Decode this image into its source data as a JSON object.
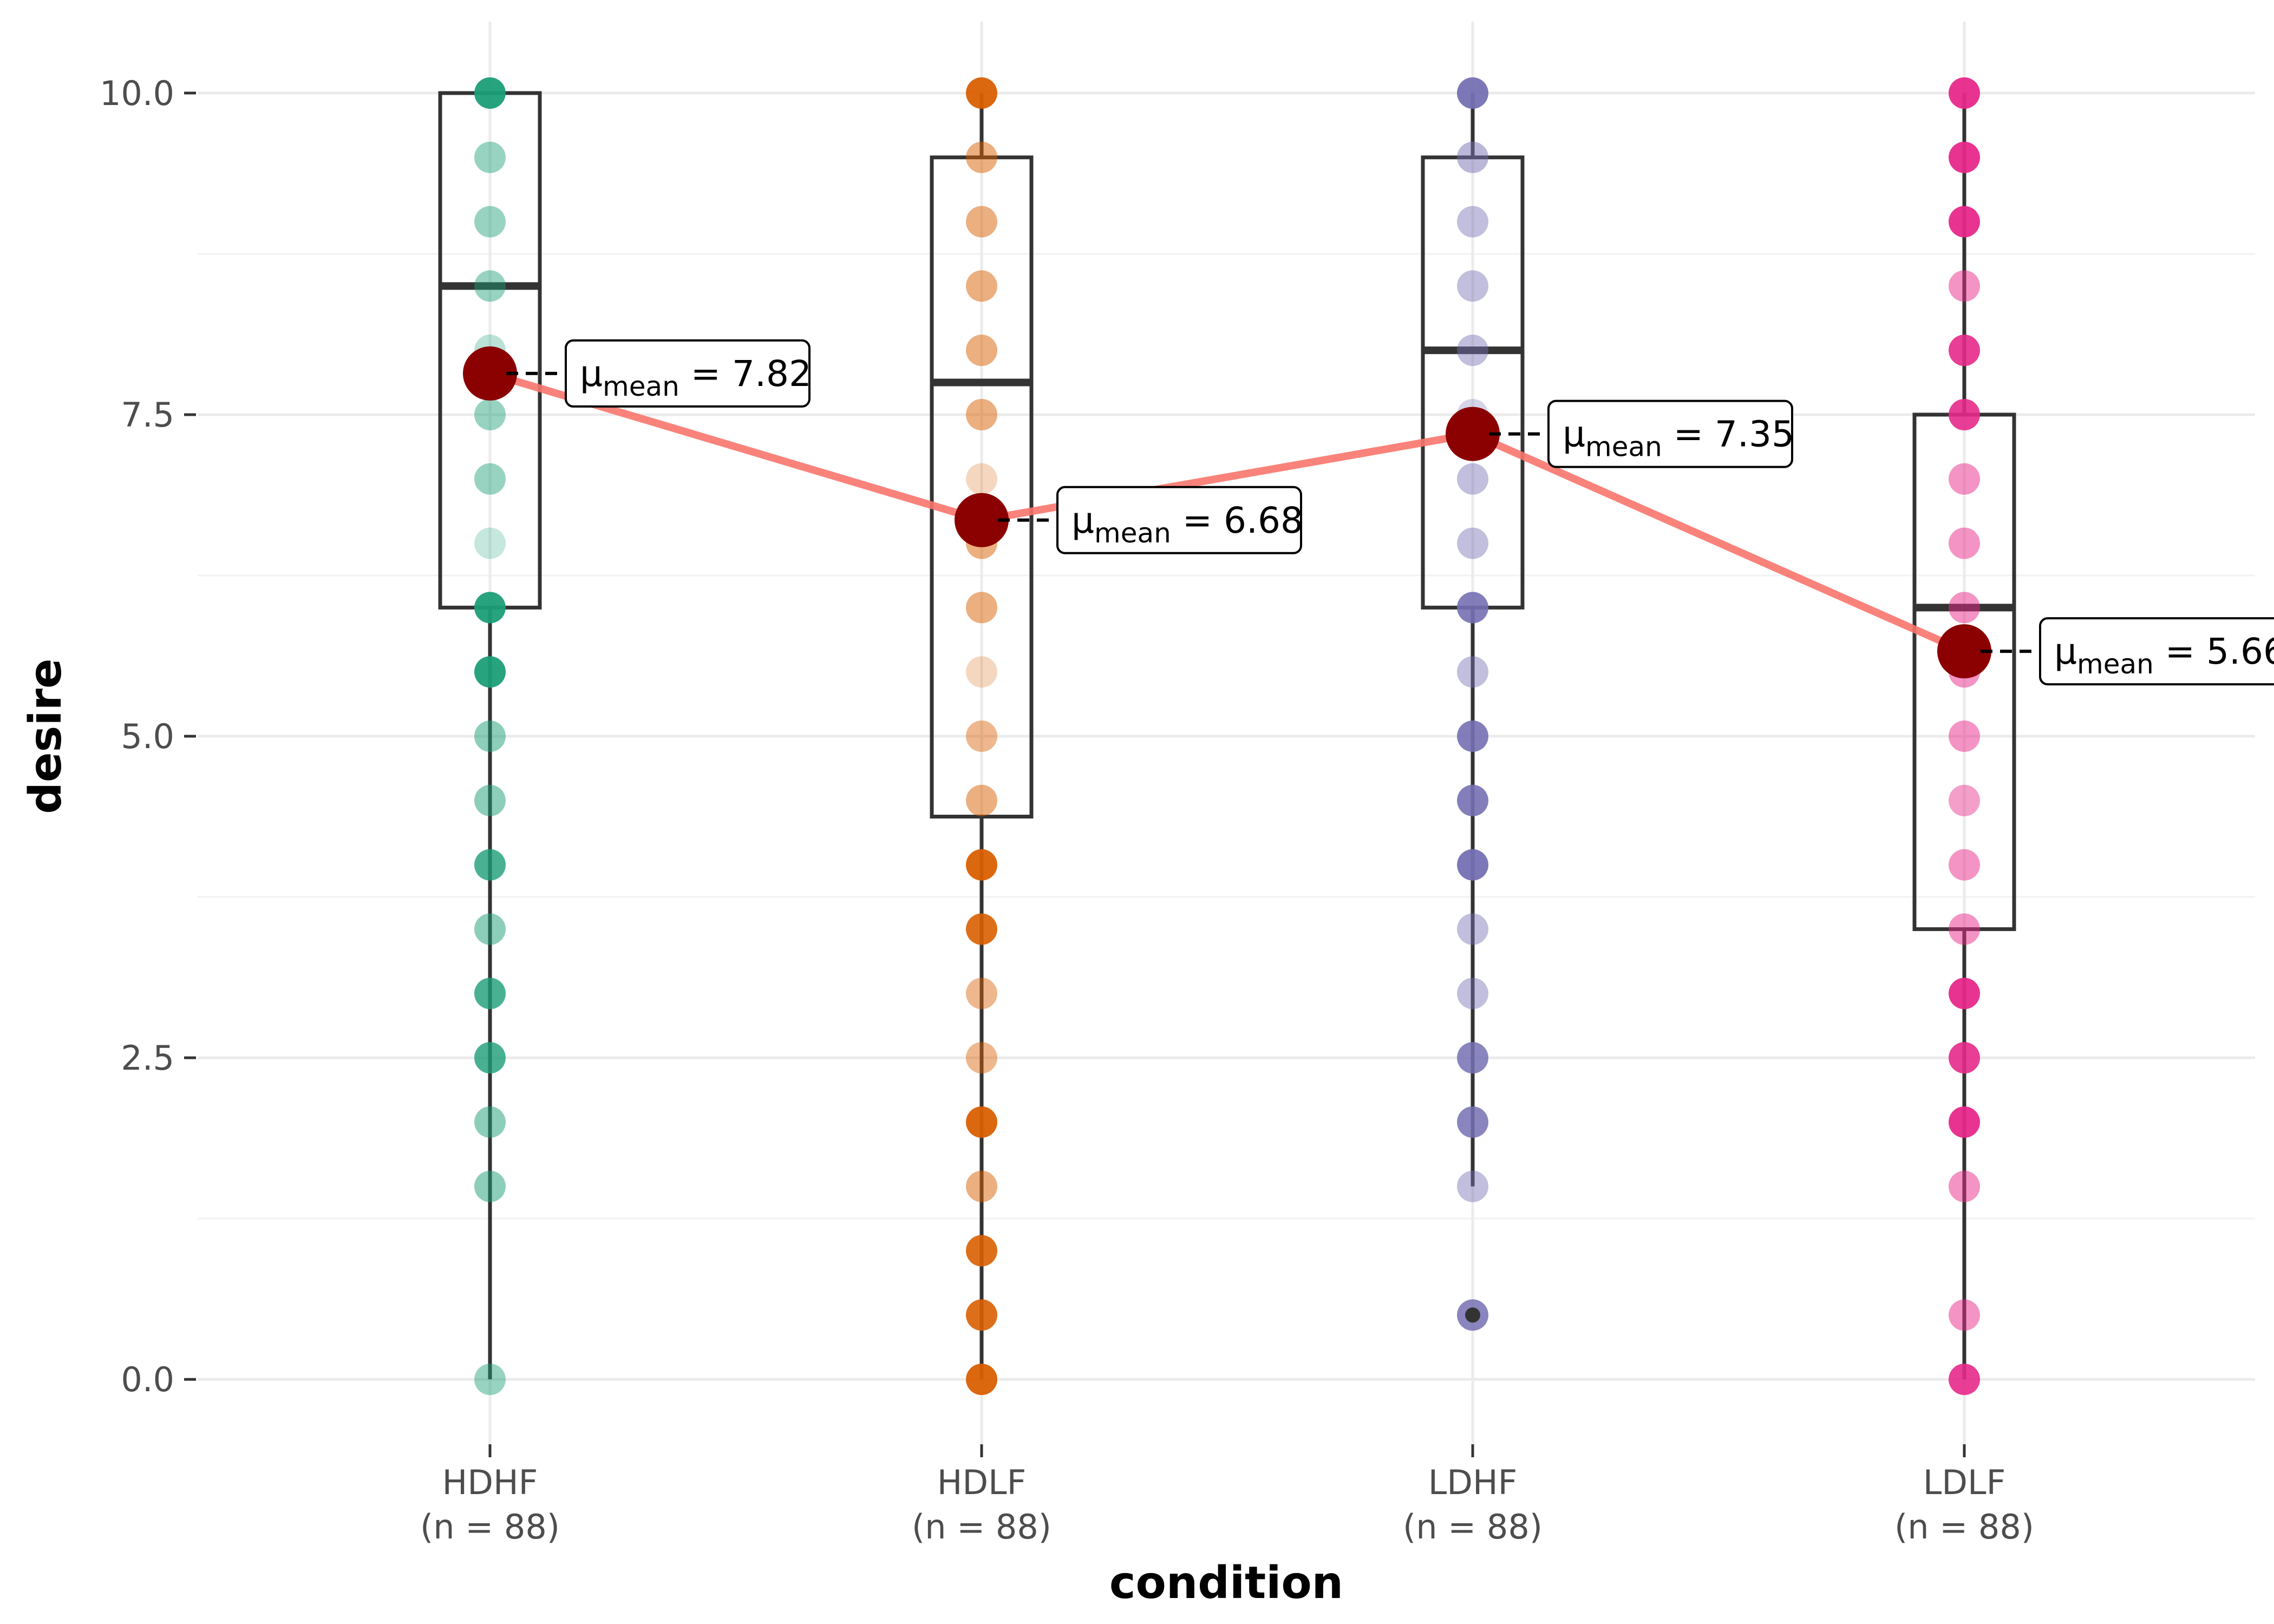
{
  "chart_data": {
    "type": "scatter",
    "subtype": "box-violin-with-jitter",
    "xlabel": "condition",
    "ylabel": "desire",
    "ylim": [
      -0.45,
      10.45
    ],
    "y_ticks": [
      "0.0",
      "2.5",
      "5.0",
      "7.5",
      "10.0"
    ],
    "y_tick_values": [
      0,
      2.5,
      5,
      7.5,
      10
    ],
    "grid": true,
    "legend": "none",
    "mean_line_color": "#f8766d",
    "mean_point_color": "#8b0000",
    "categories": [
      {
        "name": "HDHF",
        "n_label": "(n = 88)",
        "color": "#1b9e77",
        "box": {
          "q1": 6.0,
          "median": 8.5,
          "q3": 10.0,
          "whisker_low": 0.0,
          "whisker_high": 10.0
        },
        "mean": 7.82,
        "mean_label": "7.82",
        "points": [
          {
            "y": 10.0,
            "a": 0.95
          },
          {
            "y": 9.5,
            "a": 0.45
          },
          {
            "y": 9.0,
            "a": 0.45
          },
          {
            "y": 8.5,
            "a": 0.45
          },
          {
            "y": 8.0,
            "a": 0.3
          },
          {
            "y": 7.5,
            "a": 0.45
          },
          {
            "y": 7.0,
            "a": 0.45
          },
          {
            "y": 6.5,
            "a": 0.25
          },
          {
            "y": 6.0,
            "a": 0.95
          },
          {
            "y": 5.5,
            "a": 0.95
          },
          {
            "y": 5.0,
            "a": 0.5
          },
          {
            "y": 4.5,
            "a": 0.5
          },
          {
            "y": 4.0,
            "a": 0.8
          },
          {
            "y": 3.5,
            "a": 0.5
          },
          {
            "y": 3.0,
            "a": 0.8
          },
          {
            "y": 2.5,
            "a": 0.8
          },
          {
            "y": 2.0,
            "a": 0.5
          },
          {
            "y": 1.5,
            "a": 0.5
          },
          {
            "y": 0.0,
            "a": 0.45
          }
        ]
      },
      {
        "name": "HDLF",
        "n_label": "(n = 88)",
        "color": "#d95f02",
        "box": {
          "q1": 4.375,
          "median": 7.75,
          "q3": 9.5,
          "whisker_low": 0.0,
          "whisker_high": 10.0
        },
        "mean": 6.68,
        "mean_label": "6.68",
        "points": [
          {
            "y": 10.0,
            "a": 0.95
          },
          {
            "y": 9.5,
            "a": 0.5
          },
          {
            "y": 9.0,
            "a": 0.5
          },
          {
            "y": 8.5,
            "a": 0.5
          },
          {
            "y": 8.0,
            "a": 0.5
          },
          {
            "y": 7.5,
            "a": 0.5
          },
          {
            "y": 7.0,
            "a": 0.25
          },
          {
            "y": 6.5,
            "a": 0.5
          },
          {
            "y": 6.0,
            "a": 0.5
          },
          {
            "y": 5.5,
            "a": 0.25
          },
          {
            "y": 5.0,
            "a": 0.45
          },
          {
            "y": 4.5,
            "a": 0.5
          },
          {
            "y": 4.0,
            "a": 0.95
          },
          {
            "y": 3.5,
            "a": 0.9
          },
          {
            "y": 3.0,
            "a": 0.45
          },
          {
            "y": 2.5,
            "a": 0.45
          },
          {
            "y": 2.0,
            "a": 0.95
          },
          {
            "y": 1.5,
            "a": 0.5
          },
          {
            "y": 1.0,
            "a": 0.9
          },
          {
            "y": 0.5,
            "a": 0.9
          },
          {
            "y": 0.0,
            "a": 0.95
          }
        ]
      },
      {
        "name": "LDHF",
        "n_label": "(n = 88)",
        "color": "#7570b3",
        "box": {
          "q1": 6.0,
          "median": 8.0,
          "q3": 9.5,
          "whisker_low": 1.5,
          "whisker_high": 10.0
        },
        "mean": 7.35,
        "mean_label": "7.35",
        "points": [
          {
            "y": 10.0,
            "a": 0.95
          },
          {
            "y": 9.5,
            "a": 0.5
          },
          {
            "y": 9.0,
            "a": 0.45
          },
          {
            "y": 8.5,
            "a": 0.45
          },
          {
            "y": 8.0,
            "a": 0.45
          },
          {
            "y": 7.5,
            "a": 0.3
          },
          {
            "y": 7.0,
            "a": 0.45
          },
          {
            "y": 6.5,
            "a": 0.45
          },
          {
            "y": 6.0,
            "a": 0.9
          },
          {
            "y": 5.5,
            "a": 0.45
          },
          {
            "y": 5.0,
            "a": 0.9
          },
          {
            "y": 4.5,
            "a": 0.9
          },
          {
            "y": 4.0,
            "a": 0.95
          },
          {
            "y": 3.5,
            "a": 0.45
          },
          {
            "y": 3.0,
            "a": 0.45
          },
          {
            "y": 2.5,
            "a": 0.85
          },
          {
            "y": 2.0,
            "a": 0.85
          },
          {
            "y": 1.5,
            "a": 0.45
          },
          {
            "y": 0.5,
            "a": 0.85
          }
        ],
        "outliers": [
          0.5
        ]
      },
      {
        "name": "LDLF",
        "n_label": "(n = 88)",
        "color": "#e7298a",
        "box": {
          "q1": 3.5,
          "median": 6.0,
          "q3": 7.5,
          "whisker_low": 0.0,
          "whisker_high": 10.0
        },
        "mean": 5.66,
        "mean_label": "5.66",
        "points": [
          {
            "y": 10.0,
            "a": 0.95
          },
          {
            "y": 9.5,
            "a": 0.95
          },
          {
            "y": 9.0,
            "a": 0.95
          },
          {
            "y": 8.5,
            "a": 0.5
          },
          {
            "y": 8.0,
            "a": 0.9
          },
          {
            "y": 7.5,
            "a": 0.9
          },
          {
            "y": 7.0,
            "a": 0.5
          },
          {
            "y": 6.5,
            "a": 0.5
          },
          {
            "y": 6.0,
            "a": 0.5
          },
          {
            "y": 5.5,
            "a": 0.5
          },
          {
            "y": 5.0,
            "a": 0.5
          },
          {
            "y": 4.5,
            "a": 0.45
          },
          {
            "y": 4.0,
            "a": 0.5
          },
          {
            "y": 3.5,
            "a": 0.5
          },
          {
            "y": 3.0,
            "a": 0.95
          },
          {
            "y": 2.5,
            "a": 0.9
          },
          {
            "y": 2.0,
            "a": 0.95
          },
          {
            "y": 1.5,
            "a": 0.5
          },
          {
            "y": 0.5,
            "a": 0.5
          },
          {
            "y": 0.0,
            "a": 0.9
          }
        ]
      }
    ]
  }
}
